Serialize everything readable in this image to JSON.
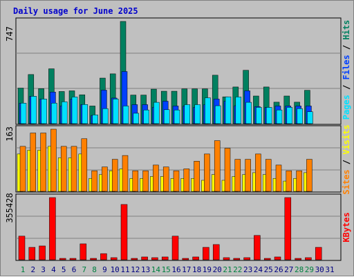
{
  "title": "Daily usage for June 2025",
  "colors": {
    "hits": "#008060",
    "files": "#0040ff",
    "pages": "#00e0ff",
    "visits": "#ffff00",
    "sites": "#ff8000",
    "kbytes": "#ff0000",
    "weekend_label": "#008040",
    "weekday_label": "#000080",
    "panel_bg": "#c0c0c0",
    "grid": "#808080"
  },
  "chart_data": [
    {
      "type": "bar",
      "name": "top-panel",
      "scale_label": "747",
      "side_labels": [
        "Pages",
        "Files",
        "Hits"
      ],
      "ylim": [
        0,
        747
      ],
      "x": [
        1,
        2,
        3,
        4,
        5,
        6,
        7,
        8,
        9,
        10,
        11,
        12,
        13,
        14,
        15,
        16,
        17,
        18,
        19,
        20,
        21,
        22,
        23,
        24,
        25,
        26,
        27,
        28,
        29,
        30
      ],
      "series": [
        {
          "name": "Hits",
          "values": [
            260,
            359,
            256,
            401,
            235,
            240,
            211,
            129,
            333,
            364,
            747,
            209,
            209,
            252,
            237,
            237,
            254,
            254,
            254,
            354,
            196,
            268,
            390,
            202,
            268,
            157,
            202,
            157,
            244,
            0
          ]
        },
        {
          "name": "Files",
          "values": [
            150,
            200,
            180,
            231,
            130,
            180,
            140,
            60,
            245,
            187,
            381,
            139,
            139,
            120,
            164,
            129,
            129,
            119,
            139,
            180,
            164,
            131,
            240,
            125,
            119,
            129,
            129,
            129,
            129,
            0
          ]
        },
        {
          "name": "Pages",
          "values": [
            150,
            200,
            180,
            150,
            160,
            195,
            140,
            64,
            110,
            180,
            129,
            76,
            100,
            156,
            102,
            100,
            139,
            139,
            189,
            131,
            196,
            195,
            156,
            119,
            119,
            100,
            119,
            110,
            87,
            0
          ]
        }
      ]
    },
    {
      "type": "bar",
      "name": "middle-panel",
      "scale_label": "163",
      "side_labels": [
        "Sites",
        "Visits"
      ],
      "ylim": [
        0,
        163
      ],
      "x": [
        1,
        2,
        3,
        4,
        5,
        6,
        7,
        8,
        9,
        10,
        11,
        12,
        13,
        14,
        15,
        16,
        17,
        18,
        19,
        20,
        21,
        22,
        23,
        24,
        25,
        26,
        27,
        28,
        29,
        30
      ],
      "series": [
        {
          "name": "Visits",
          "values": [
            98,
            108,
            108,
            118,
            88,
            88,
            98,
            34,
            44,
            54,
            59,
            34,
            34,
            39,
            39,
            34,
            34,
            34,
            29,
            44,
            29,
            39,
            44,
            49,
            44,
            34,
            27,
            34,
            49,
            0
          ]
        },
        {
          "name": "Sites",
          "values": [
            118,
            153,
            153,
            163,
            118,
            118,
            138,
            54,
            64,
            84,
            94,
            54,
            54,
            69,
            64,
            54,
            59,
            79,
            98,
            133,
            113,
            84,
            84,
            98,
            84,
            69,
            54,
            54,
            84,
            0
          ]
        }
      ]
    },
    {
      "type": "bar",
      "name": "bottom-panel",
      "scale_label": "355428",
      "side_labels": [
        "KBytes"
      ],
      "ylim": [
        0,
        355428
      ],
      "x": [
        1,
        2,
        3,
        4,
        5,
        6,
        7,
        8,
        9,
        10,
        11,
        12,
        13,
        14,
        15,
        16,
        17,
        18,
        19,
        20,
        21,
        22,
        23,
        24,
        25,
        26,
        27,
        28,
        29,
        30
      ],
      "series": [
        {
          "name": "KBytes",
          "values": [
            135000,
            71000,
            79000,
            355428,
            4000,
            4000,
            91000,
            4000,
            35000,
            12000,
            316000,
            4000,
            16000,
            12000,
            16000,
            135000,
            4000,
            16000,
            71000,
            87000,
            12000,
            8000,
            12000,
            139000,
            4000,
            16000,
            355428,
            4000,
            12000,
            71000
          ]
        }
      ]
    }
  ],
  "x_axis": {
    "labels": [
      "1",
      "2",
      "3",
      "4",
      "5",
      "6",
      "7",
      "8",
      "9",
      "10",
      "11",
      "12",
      "13",
      "14",
      "15",
      "16",
      "17",
      "18",
      "19",
      "20",
      "21",
      "22",
      "23",
      "24",
      "25",
      "26",
      "27",
      "28",
      "29",
      "30",
      "31"
    ],
    "weekend_days": [
      1,
      7,
      8,
      14,
      15,
      21,
      22,
      28,
      29
    ]
  }
}
